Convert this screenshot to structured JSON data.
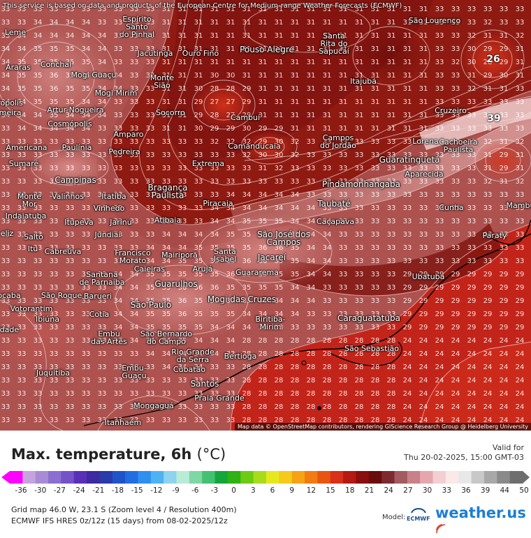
{
  "map": {
    "notice": "This service is based on data and products of the European Centre for Medium-range Weather Forecasts (ECMWF)",
    "attribution": "Map data © OpenStreetMap contributors, rendering GIScience Research Group @ Heidelberg University",
    "highlights": [
      "26",
      "39"
    ],
    "cities": [
      {
        "name": "Leme"
      },
      {
        "name": "Espírito Santo do Pinhal"
      },
      {
        "name": "Ouro Fino"
      },
      {
        "name": "Pouso Alegre"
      },
      {
        "name": "Santa Rita do Sapucaí"
      },
      {
        "name": "São Lourenço"
      },
      {
        "name": "Araras"
      },
      {
        "name": "Conchal"
      },
      {
        "name": "Mogi Guaçu"
      },
      {
        "name": "Jacutinga"
      },
      {
        "name": "Monte Sião"
      },
      {
        "name": "Itajubá"
      },
      {
        "name": "Mogi Mirim"
      },
      {
        "name": "Artur Nogueira"
      },
      {
        "name": "Cosmópolis"
      },
      {
        "name": "Socorro"
      },
      {
        "name": "Cambuí"
      },
      {
        "name": "Cruzeiro"
      },
      {
        "name": "Amparo"
      },
      {
        "name": "Paulínia"
      },
      {
        "name": "Pedreira"
      },
      {
        "name": "Camanducaia"
      },
      {
        "name": "Campos do Jordão"
      },
      {
        "name": "Lorena"
      },
      {
        "name": "Cachoeira Paulista"
      },
      {
        "name": "Americana"
      },
      {
        "name": "Sumaré"
      },
      {
        "name": "Extrema"
      },
      {
        "name": "Guaratinguetá"
      },
      {
        "name": "Aparecida"
      },
      {
        "name": "Campinas"
      },
      {
        "name": "Bragança Paulista"
      },
      {
        "name": "Pindamonhangaba"
      },
      {
        "name": "Monte Mor"
      },
      {
        "name": "Valinhos"
      },
      {
        "name": "Itatiba"
      },
      {
        "name": "Vinhedo"
      },
      {
        "name": "Piracaia"
      },
      {
        "name": "Taubaté"
      },
      {
        "name": "Cunha"
      },
      {
        "name": "Mambu"
      },
      {
        "name": "Indaiatuba"
      },
      {
        "name": "Itupeva"
      },
      {
        "name": "Jarinu"
      },
      {
        "name": "Atibaia"
      },
      {
        "name": "Caçapava"
      },
      {
        "name": "Salto"
      },
      {
        "name": "Jundiaí"
      },
      {
        "name": "São José dos Campos"
      },
      {
        "name": "Paraty"
      },
      {
        "name": "Itu"
      },
      {
        "name": "Cabreúva"
      },
      {
        "name": "Francisco Morato"
      },
      {
        "name": "Mairiporã"
      },
      {
        "name": "Santa Isabel"
      },
      {
        "name": "Jacareí"
      },
      {
        "name": "Santana de Parnaíba"
      },
      {
        "name": "Caieiras"
      },
      {
        "name": "Arujá"
      },
      {
        "name": "Guararema"
      },
      {
        "name": "Ubatuba"
      },
      {
        "name": "Guarulhos"
      },
      {
        "name": "São Roque"
      },
      {
        "name": "Barueri"
      },
      {
        "name": "Mogi das Cruzes"
      },
      {
        "name": "Votorantim"
      },
      {
        "name": "São Paulo"
      },
      {
        "name": "Biritiba-Mirim"
      },
      {
        "name": "Ibiúna"
      },
      {
        "name": "Cotia"
      },
      {
        "name": "Caraguatatuba"
      },
      {
        "name": "Embu das Artes"
      },
      {
        "name": "São Bernardo do Campo"
      },
      {
        "name": "São Sebastião"
      },
      {
        "name": "Rio Grande da Serra"
      },
      {
        "name": "Bertioga"
      },
      {
        "name": "Embu-Guaçu"
      },
      {
        "name": "Juquitiba"
      },
      {
        "name": "Cubatão"
      },
      {
        "name": "Santos"
      },
      {
        "name": "Praia Grande"
      },
      {
        "name": "Mongaguá"
      },
      {
        "name": "Itanhaém"
      },
      {
        "name": "ocaba"
      },
      {
        "name": "edade"
      },
      {
        "name": "irópolis"
      },
      {
        "name": "imeira"
      },
      {
        "name": "eliz"
      }
    ]
  },
  "legend": {
    "title": "Max. temperature, 6h",
    "unit": "(°C)",
    "valid_label": "Valid for",
    "valid_time": "Thu 20-02-2025, 15:00 GMT-03",
    "scale_ticks": [
      "-36",
      "-30",
      "-27",
      "-24",
      "-21",
      "-18",
      "-15",
      "-12",
      "-9",
      "-6",
      "-3",
      "0",
      "3",
      "6",
      "9",
      "12",
      "15",
      "18",
      "21",
      "24",
      "27",
      "30",
      "33",
      "36",
      "39",
      "44",
      "50"
    ],
    "grid_info": "Grid map 46.0 W, 23.1 S (Zoom level 4 / Resolution 400m)",
    "model_info": "ECMWF IFS HRES 0z/12z (15 days) from  08-02-2025/12z",
    "model_label": "Model:",
    "model_name": "ECMWF",
    "brand": "weather.us"
  }
}
